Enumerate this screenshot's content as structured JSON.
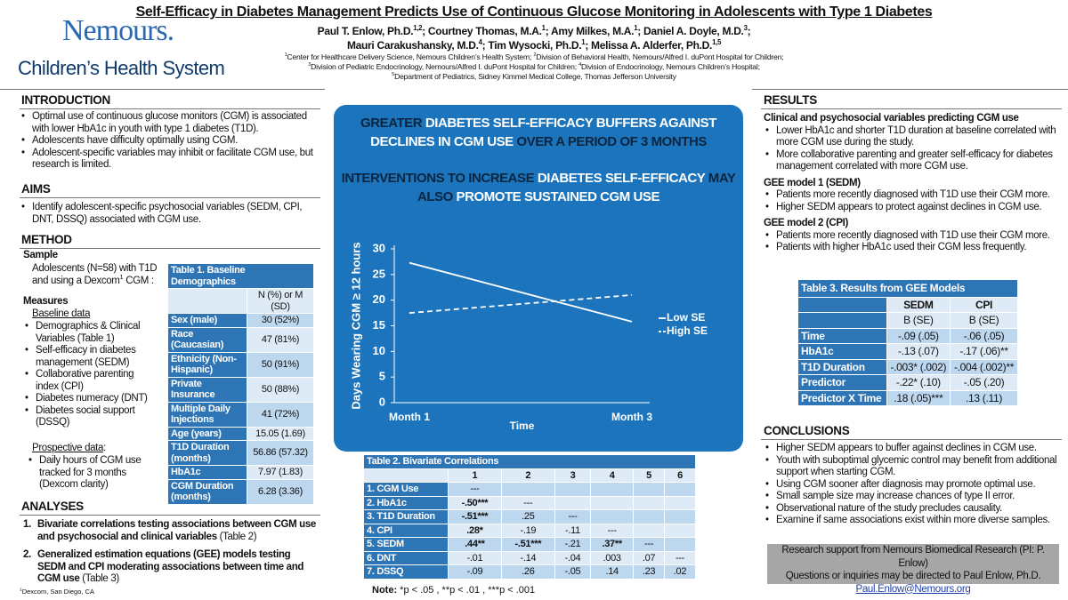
{
  "header": {
    "title": "Self-Efficacy in Diabetes Management Predicts Use of Continuous Glucose Monitoring in Adolescents with Type 1 Diabetes",
    "logo": {
      "name": "Nemours.",
      "tagline": "Children’s Health System"
    },
    "authors": [
      [
        {
          "text": "Paul T. Enlow, Ph.D.",
          "sup": "1,2"
        },
        {
          "text": "; Courtney Thomas, M.A.",
          "sup": "1"
        },
        {
          "text": "; Amy Milkes, M.A.",
          "sup": "1"
        },
        {
          "text": "; Daniel A. Doyle, M.D.",
          "sup": "3"
        },
        {
          "text": ";"
        }
      ],
      [
        {
          "text": "Mauri Carakushansky, M.D.",
          "sup": "4"
        },
        {
          "text": "; Tim Wysocki, Ph.D.",
          "sup": "1"
        },
        {
          "text": "; Melissa A. Alderfer, Ph.D.",
          "sup": "1,5"
        }
      ]
    ],
    "affiliations": [
      [
        {
          "sup": "1",
          "text": "Center for Healthcare Delivery Science, Nemours Children’s Health System; "
        },
        {
          "sup": "2",
          "text": "Division of Behavioral Health, Nemours/Alfred I. duPont Hospital for Children;"
        }
      ],
      [
        {
          "sup": "3",
          "text": "Division of Pediatric Endocrinology, Nemours/Alfred I. duPont Hospital for Children; "
        },
        {
          "sup": "4",
          "text": "Division of Endocrinology, Nemours Children’s Hospital;"
        }
      ],
      [
        {
          "sup": "5",
          "text": "Department of Pediatrics, Sidney Kimmel Medical College, Thomas Jefferson University"
        }
      ]
    ]
  },
  "introduction": {
    "heading": "INTRODUCTION",
    "bullets": [
      "Optimal use of continuous glucose monitors (CGM) is associated with lower HbA1c in youth with type 1 diabetes (T1D).",
      "Adolescents have difficulty optimally using CGM.",
      "Adolescent-specific variables may inhibit or facilitate CGM use, but research is limited."
    ]
  },
  "aims": {
    "heading": "AIMS",
    "bullets": [
      "Identify adolescent-specific psychosocial variables (SEDM, CPI, DNT, DSSQ) associated with CGM use."
    ]
  },
  "method": {
    "heading": "METHOD",
    "sample_heading": "Sample",
    "sample": [
      {
        "text": "Adolescents (N=58) with T1D and using a Dexcom",
        "sup": "1"
      },
      {
        "text": " CGM :"
      }
    ],
    "measures_heading": "Measures",
    "baseline_heading": "Baseline data",
    "baseline": [
      "Demographics & Clinical Variables (Table 1)",
      "Self-efficacy in diabetes management (SEDM)",
      "Collaborative parenting index (CPI)",
      "Diabetes numeracy (DNT)",
      "Diabetes social support (DSSQ)"
    ],
    "prospective_heading": "Prospective data",
    "prospective_suffix": ":",
    "prospective": [
      "Daily hours of CGM use tracked for 3 months (Dexcom clarity)"
    ]
  },
  "analyses": {
    "heading": "ANALYSES",
    "items": [
      {
        "number": "1.",
        "bold": "Bivariate correlations testing associations between CGM use and psychosocial and clinical variables",
        "text": " (Table 2)"
      },
      {
        "number": "2.",
        "bold": "Generalized estimation equations (GEE) models testing SEDM and CPI moderating associations between time and CGM use",
        "text": " (Table 3)"
      }
    ]
  },
  "footnote": {
    "sup": "1",
    "text": "Dexcom, San Diego, CA"
  },
  "table1": {
    "title": "Table 1. Baseline Demographics",
    "columns": [
      "N (%) or M (SD)"
    ],
    "rows": [
      [
        "Sex (male)",
        "30 (52%)"
      ],
      [
        "Race (Caucasian)",
        "47 (81%)"
      ],
      [
        "Ethnicity (Non-Hispanic)",
        "50 (91%)"
      ],
      [
        "Private Insurance",
        "50 (88%)"
      ],
      [
        "Multiple Daily Injections",
        "41 (72%)"
      ],
      [
        "Age (years)",
        "15.05  (1.69)"
      ],
      [
        "T1D Duration (months)",
        "56.86 (57.32)"
      ],
      [
        "HbA1c",
        "7.97 (1.83)"
      ],
      [
        "CGM Duration (months)",
        "6.28 (3.36)"
      ]
    ]
  },
  "key_findings": [
    [
      {
        "text": "GREATER ",
        "dark": true
      },
      {
        "text": "DIABETES SELF-EFFICACY BUFFERS AGAINST DECLINES IN CGM USE "
      },
      {
        "text": "OVER A PERIOD OF 3 MONTHS",
        "dark": true
      }
    ],
    [
      {
        "text": "INTERVENTIONS TO INCREASE ",
        "dark": true
      },
      {
        "text": "DIABETES SELF-EFFICACY "
      },
      {
        "text": "MAY ALSO ",
        "dark": true
      },
      {
        "text": "PROMOTE SUSTAINED CGM USE"
      }
    ]
  ],
  "chart_data": {
    "type": "line",
    "x_label": "Time",
    "y_label": "Days Wearing CGM ≥ 12 hours",
    "categories": [
      "Month 1",
      "Month 3"
    ],
    "series": [
      {
        "name": "Low SE",
        "color": "#ffffff",
        "line_style": "solid",
        "values": [
          27.3,
          15.8
        ]
      },
      {
        "name": "High SE",
        "color": "#ffffff",
        "line_style": "dashed",
        "values": [
          17.5,
          21
        ]
      }
    ],
    "ylim": [
      0,
      30
    ],
    "yticks": [
      0,
      5,
      10,
      15,
      20,
      25,
      30
    ]
  },
  "table2": {
    "title": "Table 2. Bivariate Correlations",
    "columns": [
      "1",
      "2",
      "3",
      "4",
      "5",
      "6"
    ],
    "rows": [
      [
        "1. CGM Use",
        "---"
      ],
      [
        "2. HbA1c",
        "-.50***",
        "---"
      ],
      [
        "3. T1D Duration",
        "-.51***",
        ".25",
        "---"
      ],
      [
        "4. CPI",
        ".28*",
        "-.19",
        "-.11",
        "---"
      ],
      [
        "5. SEDM",
        ".44**",
        "-.51***",
        "-.21",
        ".37**",
        "---"
      ],
      [
        "6. DNT",
        "-.01",
        "-.14",
        "-.04",
        ".003",
        ".07",
        "---"
      ],
      [
        "7. DSSQ",
        "-.09",
        ".26",
        "-.05",
        ".14",
        ".23",
        ".02"
      ]
    ],
    "bold": [
      [
        1,
        1
      ],
      [
        2,
        1
      ],
      [
        3,
        1
      ],
      [
        4,
        1
      ],
      [
        4,
        2
      ],
      [
        4,
        4
      ]
    ],
    "note_label": "Note:",
    "note": " *p < .05 , **p < .01 , ***p < .001"
  },
  "results": {
    "heading": "RESULTS",
    "groups": [
      {
        "heading": "Clinical and psychosocial variables predicting CGM use",
        "bullets": [
          "Lower HbA1c and shorter T1D duration at baseline correlated with more CGM use during the study.",
          "More collaborative parenting and greater self-efficacy for diabetes management correlated with more CGM use."
        ]
      },
      {
        "heading": "GEE model 1 (SEDM)",
        "bullets": [
          "Patients more recently diagnosed with T1D use their CGM more.",
          "Higher SEDM appears to protect against declines in CGM use."
        ]
      },
      {
        "heading": "GEE model 2 (CPI)",
        "bullets": [
          "Patients more recently diagnosed with T1D use their CGM more.",
          "Patients with higher HbA1c used their CGM less frequently."
        ]
      }
    ]
  },
  "table3": {
    "title": "Table 3. Results from GEE Models",
    "columns": [
      "SEDM",
      "CPI"
    ],
    "subcolumns": [
      "B (SE)",
      "B (SE)"
    ],
    "rows": [
      [
        "Time",
        "-.09 (.05)",
        "-.06 (.05)"
      ],
      [
        "HbA1c",
        "-.13 (.07)",
        "-.17 (.06)**"
      ],
      [
        "T1D Duration",
        "-.003* (.002)",
        "-.004 (.002)**"
      ],
      [
        "Predictor",
        "-.22* (.10)",
        "-.05 (.20)"
      ],
      [
        "Predictor X Time",
        ".18 (.05)***",
        ".13 (.11)"
      ]
    ]
  },
  "conclusions": {
    "heading": "CONCLUSIONS",
    "bullets": [
      "Higher SEDM appears to buffer against declines in CGM use.",
      "Youth with suboptimal glycemic control may benefit from additional support when starting CGM.",
      "Using CGM sooner after diagnosis may promote optimal use.",
      "Small sample size may increase chances of type II error.",
      "Observational nature of the study precludes causality.",
      "Examine if same associations exist within more diverse samples."
    ]
  },
  "support": {
    "lines": [
      "Research support from Nemours Biomedical Research (PI: P. Enlow)",
      "Questions or inquiries may be directed to Paul Enlow, Ph.D."
    ],
    "email": "Paul.Enlow@Nemours.org"
  }
}
